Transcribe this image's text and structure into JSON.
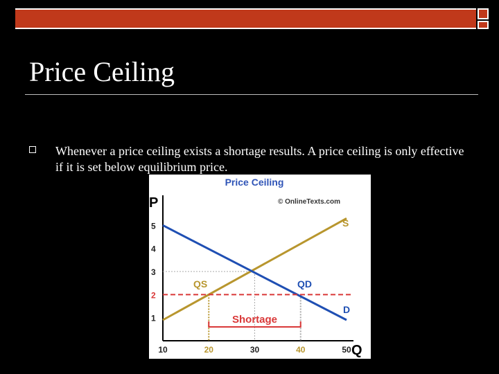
{
  "slide": {
    "title": "Price Ceiling",
    "bullet_text": "Whenever a price ceiling exists a shortage results. A price ceiling is only effective if it is set below equilibrium price."
  },
  "colors": {
    "band": "#c0391b",
    "supply": "#b8962e",
    "demand": "#1f4fb3",
    "ceiling": "#d93838",
    "title_blue": "#2f54b7"
  },
  "chart_data": {
    "type": "line",
    "title": "Price Ceiling",
    "watermark": "© OnlineTexts.com",
    "xlabel": "Q",
    "ylabel": "P",
    "xlim": [
      10,
      50
    ],
    "ylim": [
      0,
      5.5
    ],
    "x_ticks": [
      10,
      20,
      30,
      40,
      50
    ],
    "y_ticks": [
      1,
      2,
      3,
      4,
      5
    ],
    "series": [
      {
        "name": "S",
        "points": [
          [
            10,
            0.9
          ],
          [
            50,
            5.3
          ]
        ]
      },
      {
        "name": "D",
        "points": [
          [
            10,
            5.0
          ],
          [
            50,
            0.9
          ]
        ]
      }
    ],
    "ceiling_price": 2,
    "equilibrium": {
      "q": 30,
      "p": 3
    },
    "qs": 20,
    "qd": 40,
    "labels": {
      "qs": "QS",
      "qd": "QD",
      "shortage": "Shortage",
      "s": "S",
      "d": "D"
    }
  }
}
